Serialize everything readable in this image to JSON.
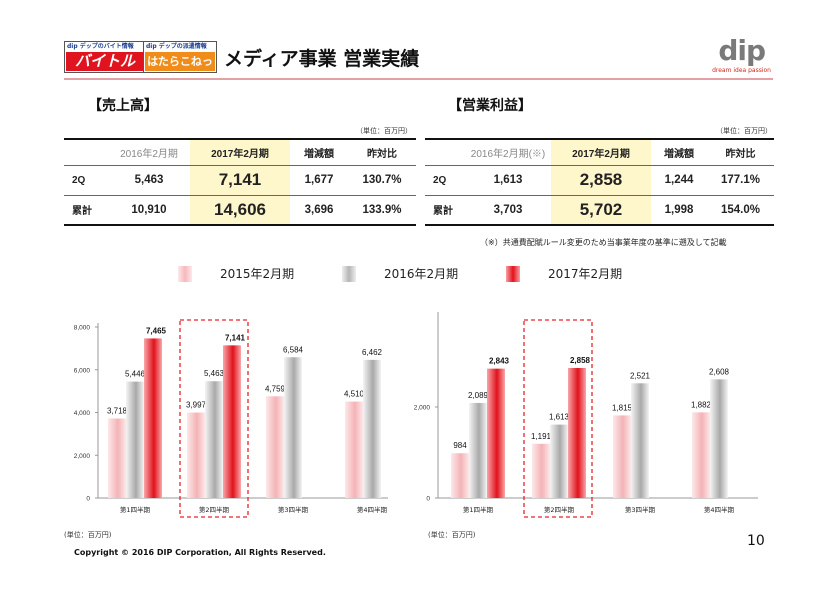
{
  "header": {
    "baitoru_tag": "dip デップのバイト情報",
    "baitoru_name": "バイトル",
    "hatarako_tag": "dip デップの派遣情報",
    "hatarako_name": "はたらこねっと",
    "title": "メディア事業 営業実績",
    "logo_text": "dip",
    "logo_tagline": "dream idea passion"
  },
  "sales_section": {
    "title": "【売上高】",
    "unit": "（単位：百万円）",
    "headers": [
      "",
      "2016年2月期",
      "2017年2月期",
      "増減額",
      "昨対比"
    ],
    "rows": [
      {
        "label": "2Q",
        "prev": "5,463",
        "curr": "7,141",
        "diff": "1,677",
        "ratio": "130.7%"
      },
      {
        "label": "累計",
        "prev": "10,910",
        "curr": "14,606",
        "diff": "3,696",
        "ratio": "133.9%"
      }
    ]
  },
  "profit_section": {
    "title": "【営業利益】",
    "unit": "（単位：百万円）",
    "headers": [
      "",
      "2016年2月期(※)",
      "2017年2月期",
      "増減額",
      "昨対比"
    ],
    "rows": [
      {
        "label": "2Q",
        "prev": "1,613",
        "curr": "2,858",
        "diff": "1,244",
        "ratio": "177.1%"
      },
      {
        "label": "累計",
        "prev": "3,703",
        "curr": "5,702",
        "diff": "1,998",
        "ratio": "154.0%"
      }
    ]
  },
  "footnote": "（※）共通費配賦ルール変更のため当事業年度の基準に遡及して記載",
  "legend": [
    "2015年2月期",
    "2016年2月期",
    "2017年2月期"
  ],
  "colors": {
    "fy2015": "#f6c4c6",
    "fy2016": "#c8c8c8",
    "fy2017": "#e8222a",
    "highlight_box": "#e8222a",
    "header_rule": "#e3a0a5",
    "table_highlight": "#fff7cc"
  },
  "chart_data": [
    {
      "type": "bar",
      "categories": [
        "第1四半期",
        "第2四半期",
        "第3四半期",
        "第4四半期"
      ],
      "series": [
        {
          "name": "2015年2月期",
          "values": [
            3718,
            3997,
            4759,
            4510
          ],
          "labels": [
            "3,718",
            "3,997",
            "4,759",
            "4,510"
          ]
        },
        {
          "name": "2016年2月期",
          "values": [
            5446,
            5463,
            6584,
            6462
          ],
          "labels": [
            "5,446",
            "5,463",
            "6,584",
            "6,462"
          ]
        },
        {
          "name": "2017年2月期",
          "values": [
            7465,
            7141,
            null,
            null
          ],
          "labels": [
            "7,465",
            "7,141",
            "",
            ""
          ]
        }
      ],
      "ylim": [
        0,
        8000
      ],
      "yticks": [
        0,
        2000,
        4000,
        6000,
        8000
      ],
      "ytick_labels": [
        "0",
        "2,000",
        "4,000",
        "6,000",
        "8,000"
      ],
      "highlight_category": 1,
      "unit": "(単位：百万円)"
    },
    {
      "type": "bar",
      "categories": [
        "第1四半期",
        "第2四半期",
        "第3四半期",
        "第4四半期"
      ],
      "series": [
        {
          "name": "2015年2月期",
          "values": [
            984,
            1191,
            1815,
            1882
          ],
          "labels": [
            "984",
            "1,191",
            "1,815",
            "1,882"
          ]
        },
        {
          "name": "2016年2月期",
          "values": [
            2089,
            1613,
            2521,
            2608
          ],
          "labels": [
            "2,089",
            "1,613",
            "2,521",
            "2,608"
          ]
        },
        {
          "name": "2017年2月期",
          "values": [
            2843,
            2858,
            null,
            null
          ],
          "labels": [
            "2,843",
            "2,858",
            "",
            ""
          ]
        }
      ],
      "ylim": [
        0,
        4000
      ],
      "yticks": [
        0,
        2000
      ],
      "ytick_labels": [
        "0",
        "2,000"
      ],
      "highlight_category": 1,
      "unit": "(単位：百万円)"
    }
  ],
  "footer": {
    "copyright": "Copyright © 2016 DIP Corporation, All Rights Reserved.",
    "page_number": "10"
  }
}
